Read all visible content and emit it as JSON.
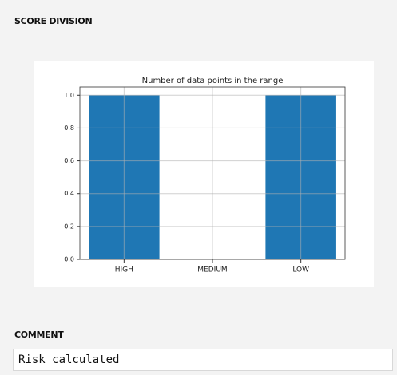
{
  "header": "SCORE DIVISION",
  "chart_data": {
    "type": "bar",
    "title": "Number of data points in the range",
    "categories": [
      "HIGH",
      "MEDIUM",
      "LOW"
    ],
    "values": [
      1,
      0,
      1
    ],
    "color": "#1f77b4",
    "ylim": [
      0,
      1.05
    ],
    "yticks": [
      {
        "value": 0,
        "label": "0.0"
      },
      0.2,
      0.4,
      0.6,
      0.8,
      {
        "value": 1,
        "label": "1.0"
      }
    ],
    "grid": true
  },
  "comment": {
    "label": "COMMENT",
    "text": "Risk calculated"
  }
}
